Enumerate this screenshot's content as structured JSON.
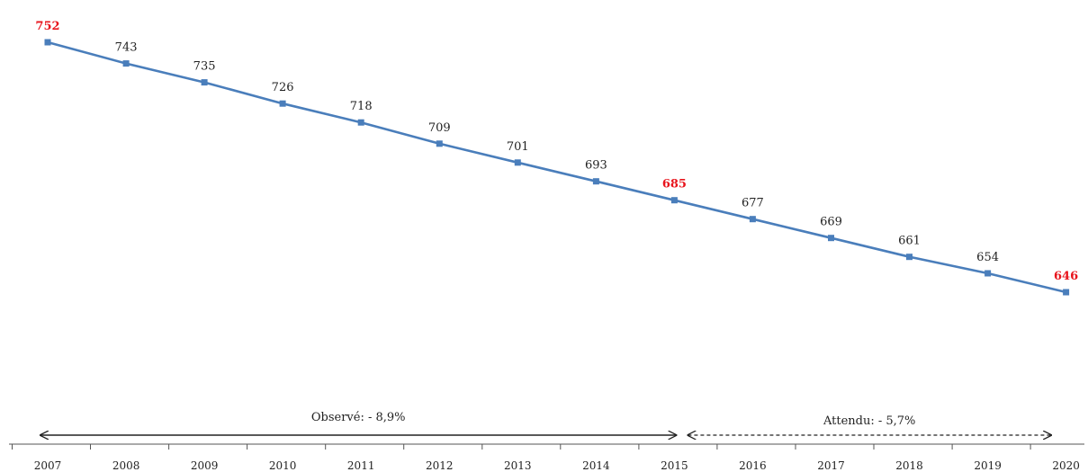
{
  "chart_data": {
    "type": "line",
    "title": "",
    "xlabel": "",
    "ylabel": "",
    "x": [
      "2007",
      "2008",
      "2009",
      "2010",
      "2011",
      "2012",
      "2013",
      "2014",
      "2015",
      "2016",
      "2017",
      "2018",
      "2019",
      "2020"
    ],
    "series": [
      {
        "values": [
          752,
          743,
          735,
          726,
          718,
          709,
          701,
          693,
          685,
          677,
          669,
          661,
          654,
          646
        ]
      }
    ],
    "highlighted_years": [
      "2007",
      "2015",
      "2020"
    ],
    "ylim": [
      600,
      760
    ],
    "grid": false,
    "colors": {
      "line": "#4a7ebb",
      "marker": "#4a7ebb",
      "highlight": "#e8141c",
      "axis": "#555555"
    },
    "annotations": [
      {
        "label": "Observé: - 8,9%",
        "from": "2007",
        "to": "2015",
        "style": "solid"
      },
      {
        "label": "Attendu: - 5,7%",
        "from": "2015",
        "to": "2020",
        "style": "dashed"
      }
    ]
  }
}
